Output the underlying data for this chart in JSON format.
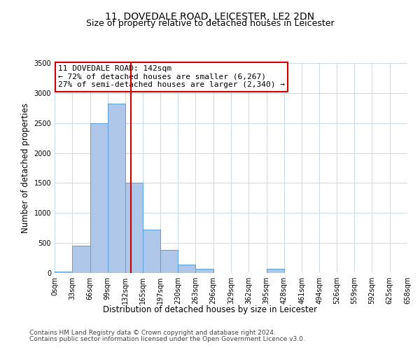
{
  "title": "11, DOVEDALE ROAD, LEICESTER, LE2 2DN",
  "subtitle": "Size of property relative to detached houses in Leicester",
  "xlabel": "Distribution of detached houses by size in Leicester",
  "ylabel": "Number of detached properties",
  "bar_color": "#aec6e8",
  "bar_edge_color": "#5a9fd4",
  "vline_color": "#cc0000",
  "vline_x": 142,
  "annotation_text": "11 DOVEDALE ROAD: 142sqm\n← 72% of detached houses are smaller (6,267)\n27% of semi-detached houses are larger (2,340) →",
  "bin_edges": [
    0,
    33,
    66,
    99,
    132,
    165,
    197,
    230,
    263,
    296,
    329,
    362,
    395,
    428,
    461,
    494,
    526,
    559,
    592,
    625,
    658
  ],
  "bar_heights": [
    20,
    460,
    2500,
    2820,
    1510,
    720,
    380,
    145,
    70,
    0,
    0,
    0,
    65,
    0,
    0,
    0,
    0,
    0,
    0,
    0
  ],
  "ylim": [
    0,
    3500
  ],
  "yticks": [
    0,
    500,
    1000,
    1500,
    2000,
    2500,
    3000,
    3500
  ],
  "xtick_labels": [
    "0sqm",
    "33sqm",
    "66sqm",
    "99sqm",
    "132sqm",
    "165sqm",
    "197sqm",
    "230sqm",
    "263sqm",
    "296sqm",
    "329sqm",
    "362sqm",
    "395sqm",
    "428sqm",
    "461sqm",
    "494sqm",
    "526sqm",
    "559sqm",
    "592sqm",
    "625sqm",
    "658sqm"
  ],
  "footnote1": "Contains HM Land Registry data © Crown copyright and database right 2024.",
  "footnote2": "Contains public sector information licensed under the Open Government Licence v3.0.",
  "background_color": "#ffffff",
  "grid_color": "#c8d8e8",
  "box_color": "#cc0000",
  "title_fontsize": 10,
  "subtitle_fontsize": 9,
  "annotation_fontsize": 8,
  "axis_label_fontsize": 8.5,
  "tick_fontsize": 7,
  "footnote_fontsize": 6.5
}
